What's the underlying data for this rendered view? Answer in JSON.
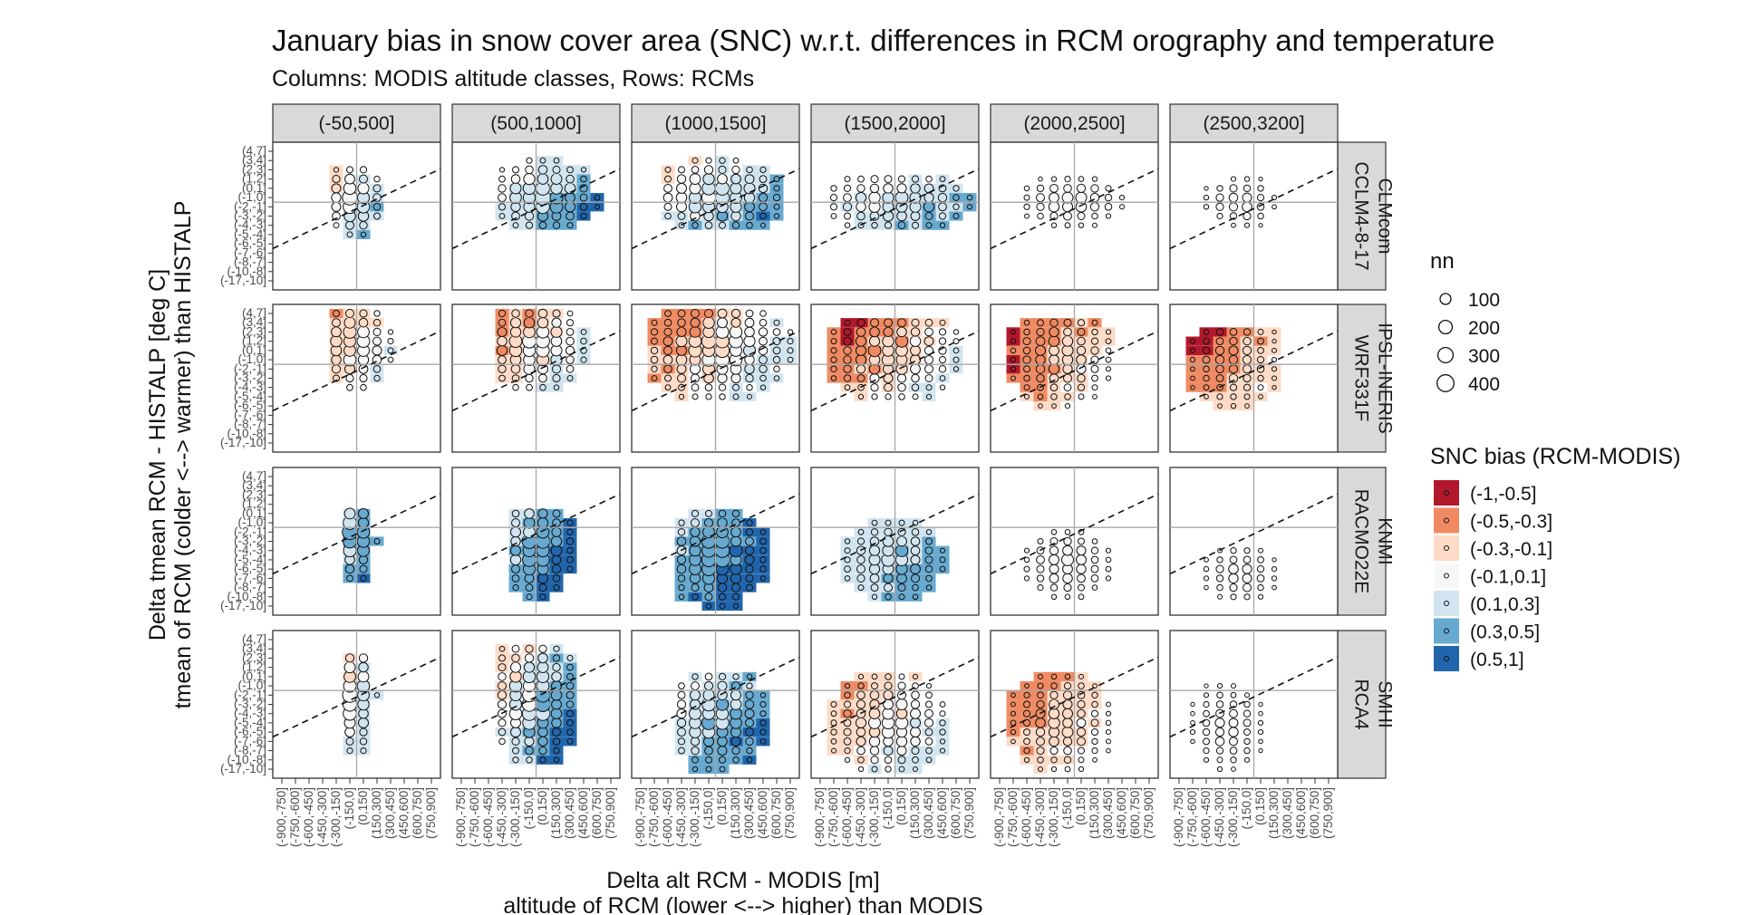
{
  "chart_data": {
    "type": "scatter",
    "title": "January bias in snow cover area (SNC) w.r.t. differences in RCM orography and temperature",
    "subtitle": "Columns: MODIS altitude classes, Rows: RCMs",
    "xlabel": "Delta alt RCM - MODIS [m]",
    "xlabel2": "altitude of RCM (lower <--> higher) than MODIS",
    "ylabel": "Delta tmean RCM - HISTALP [deg C]",
    "ylabel2": "tmean of RCM (colder <--> warmer) than HISTALP",
    "columns": [
      "(-50,500]",
      "(500,1000]",
      "(1000,1500]",
      "(1500,2000]",
      "(2000,2500]",
      "(2500,3200]"
    ],
    "rows": [
      {
        "name": "CLMcom",
        "name2": "CCLM4-8-17"
      },
      {
        "name": "IPSL-INERIS",
        "name2": "WRF331F"
      },
      {
        "name": "KNMI",
        "name2": "RACMO22E"
      },
      {
        "name": "SMHI",
        "name2": "RCA4"
      }
    ],
    "x_ticks": [
      "(-900,-750]",
      "(-750,-600]",
      "(-600,-450]",
      "(-450,-300]",
      "(-300,-150]",
      "(-150,0]",
      "(0,150]",
      "(150,300]",
      "(300,450]",
      "(450,600]",
      "(600,750]",
      "(750,900]"
    ],
    "y_ticks": [
      "(-17,-10]",
      "(-10,-8]",
      "(-8,-7]",
      "(-7,-6]",
      "(-6,-5]",
      "(-5,-4]",
      "(-4,-3]",
      "(-3,-2]",
      "(-2,-1]",
      "(-1,0]",
      "(0,1]",
      "(1,2]",
      "(2,3]",
      "(3,4]",
      "(4,7]"
    ],
    "zero_x_index": 5.5,
    "zero_y_index": 8.5,
    "size_legend": {
      "title": "nn",
      "values": [
        100,
        200,
        300,
        400
      ]
    },
    "color_legend": {
      "title": "SNC bias (RCM-MODIS)",
      "classes": [
        "(-1,-0.5]",
        "(-0.5,-0.3]",
        "(-0.3,-0.1]",
        "(-0.1,0.1]",
        "(0.1,0.3]",
        "(0.3,0.5]",
        "(0.5,1]"
      ],
      "colors": [
        "#b2182b",
        "#ef8a62",
        "#fddbc7",
        "#f7f7f7",
        "#d1e5f0",
        "#67a9cf",
        "#2166ac"
      ]
    },
    "panels": [
      {
        "row": 0,
        "col": 0,
        "x_range": [
          4,
          8
        ],
        "y_range": [
          5,
          12
        ],
        "center": [
          5.3,
          8.8
        ],
        "bias": [
          -0.2,
          0.5,
          0.2
        ],
        "n_max": 380
      },
      {
        "row": 0,
        "col": 1,
        "x_range": [
          3,
          10
        ],
        "y_range": [
          6,
          13
        ],
        "center": [
          6.0,
          9.2
        ],
        "bias": [
          -0.1,
          0.6,
          0.2
        ],
        "n_max": 400
      },
      {
        "row": 0,
        "col": 2,
        "x_range": [
          2,
          11
        ],
        "y_range": [
          6,
          13
        ],
        "center": [
          5.5,
          9.2
        ],
        "bias": [
          -0.2,
          0.6,
          0.2
        ],
        "n_max": 380
      },
      {
        "row": 0,
        "col": 3,
        "x_range": [
          1,
          11
        ],
        "y_range": [
          5,
          11
        ],
        "center": [
          5.5,
          8.6
        ],
        "bias": [
          -0.1,
          0.5,
          0.1
        ],
        "n_max": 280
      },
      {
        "row": 0,
        "col": 4,
        "x_range": [
          2,
          9
        ],
        "y_range": [
          6,
          11
        ],
        "center": [
          5.2,
          8.6
        ],
        "bias": [
          0.0,
          0.1,
          0.0
        ],
        "n_max": 220
      },
      {
        "row": 0,
        "col": 5,
        "x_range": [
          2,
          7
        ],
        "y_range": [
          6,
          11
        ],
        "center": [
          4.5,
          8.5
        ],
        "bias": [
          0.0,
          0.0,
          0.0
        ],
        "n_max": 150
      },
      {
        "row": 1,
        "col": 0,
        "x_range": [
          4,
          9
        ],
        "y_range": [
          5,
          14
        ],
        "center": [
          5.3,
          10.5
        ],
        "bias": [
          -0.3,
          0.3,
          0.15
        ],
        "n_max": 340
      },
      {
        "row": 1,
        "col": 1,
        "x_range": [
          3,
          10
        ],
        "y_range": [
          5,
          14
        ],
        "center": [
          5.3,
          10.5
        ],
        "bias": [
          -0.4,
          0.4,
          0.25
        ],
        "n_max": 380
      },
      {
        "row": 1,
        "col": 2,
        "x_range": [
          1,
          11
        ],
        "y_range": [
          4,
          14
        ],
        "center": [
          5.5,
          10.3
        ],
        "bias": [
          -0.5,
          0.4,
          0.2
        ],
        "n_max": 360
      },
      {
        "row": 1,
        "col": 3,
        "x_range": [
          1,
          10
        ],
        "y_range": [
          3,
          13
        ],
        "center": [
          5.3,
          9.8
        ],
        "bias": [
          -0.6,
          0.35,
          0.25
        ],
        "n_max": 280
      },
      {
        "row": 1,
        "col": 4,
        "x_range": [
          1,
          8
        ],
        "y_range": [
          3,
          13
        ],
        "center": [
          4.5,
          9.5
        ],
        "bias": [
          -0.6,
          0.1,
          0.2
        ],
        "n_max": 210
      },
      {
        "row": 1,
        "col": 5,
        "x_range": [
          1,
          7
        ],
        "y_range": [
          2,
          12
        ],
        "center": [
          4.0,
          9.0
        ],
        "bias": [
          -0.6,
          0.0,
          0.1
        ],
        "n_max": 140
      },
      {
        "row": 2,
        "col": 0,
        "x_range": [
          5,
          8
        ],
        "y_range": [
          1,
          10
        ],
        "center": [
          5.3,
          7.5
        ],
        "bias": [
          0.2,
          0.8,
          0.5
        ],
        "n_max": 420
      },
      {
        "row": 2,
        "col": 1,
        "x_range": [
          4,
          9
        ],
        "y_range": [
          0,
          10
        ],
        "center": [
          5.5,
          6.5
        ],
        "bias": [
          0.2,
          0.8,
          0.4
        ],
        "n_max": 420
      },
      {
        "row": 2,
        "col": 2,
        "x_range": [
          3,
          10
        ],
        "y_range": [
          0,
          10
        ],
        "center": [
          5.5,
          5.5
        ],
        "bias": [
          0.2,
          0.8,
          0.5
        ],
        "n_max": 390
      },
      {
        "row": 2,
        "col": 3,
        "x_range": [
          2,
          9
        ],
        "y_range": [
          1,
          9
        ],
        "center": [
          5.3,
          5.0
        ],
        "bias": [
          0.1,
          0.45,
          0.2
        ],
        "n_max": 280
      },
      {
        "row": 2,
        "col": 4,
        "x_range": [
          2,
          8
        ],
        "y_range": [
          1,
          8
        ],
        "center": [
          5.0,
          4.5
        ],
        "bias": [
          0.0,
          0.1,
          0.0
        ],
        "n_max": 220
      },
      {
        "row": 2,
        "col": 5,
        "x_range": [
          2,
          7
        ],
        "y_range": [
          1,
          7
        ],
        "center": [
          4.5,
          3.5
        ],
        "bias": [
          0.0,
          0.0,
          0.0
        ],
        "n_max": 150
      },
      {
        "row": 3,
        "col": 0,
        "x_range": [
          5,
          8
        ],
        "y_range": [
          0,
          12
        ],
        "center": [
          5.3,
          8.0
        ],
        "bias": [
          -0.1,
          0.7,
          0.3
        ],
        "n_max": 380
      },
      {
        "row": 3,
        "col": 1,
        "x_range": [
          3,
          9
        ],
        "y_range": [
          0,
          13
        ],
        "center": [
          5.3,
          7.5
        ],
        "bias": [
          -0.2,
          0.8,
          0.4
        ],
        "n_max": 400
      },
      {
        "row": 3,
        "col": 2,
        "x_range": [
          3,
          10
        ],
        "y_range": [
          0,
          10
        ],
        "center": [
          5.5,
          5.5
        ],
        "bias": [
          0.0,
          0.7,
          0.4
        ],
        "n_max": 350
      },
      {
        "row": 3,
        "col": 3,
        "x_range": [
          1,
          9
        ],
        "y_range": [
          0,
          10
        ],
        "center": [
          5.0,
          5.0
        ],
        "bias": [
          -0.4,
          0.3,
          0.15
        ],
        "n_max": 280
      },
      {
        "row": 3,
        "col": 4,
        "x_range": [
          1,
          8
        ],
        "y_range": [
          0,
          10
        ],
        "center": [
          4.5,
          5.0
        ],
        "bias": [
          -0.5,
          0.1,
          0.1
        ],
        "n_max": 190
      },
      {
        "row": 3,
        "col": 5,
        "x_range": [
          1,
          6
        ],
        "y_range": [
          0,
          9
        ],
        "center": [
          3.5,
          4.5
        ],
        "bias": [
          -0.1,
          0.0,
          0.0
        ],
        "n_max": 130
      }
    ]
  }
}
